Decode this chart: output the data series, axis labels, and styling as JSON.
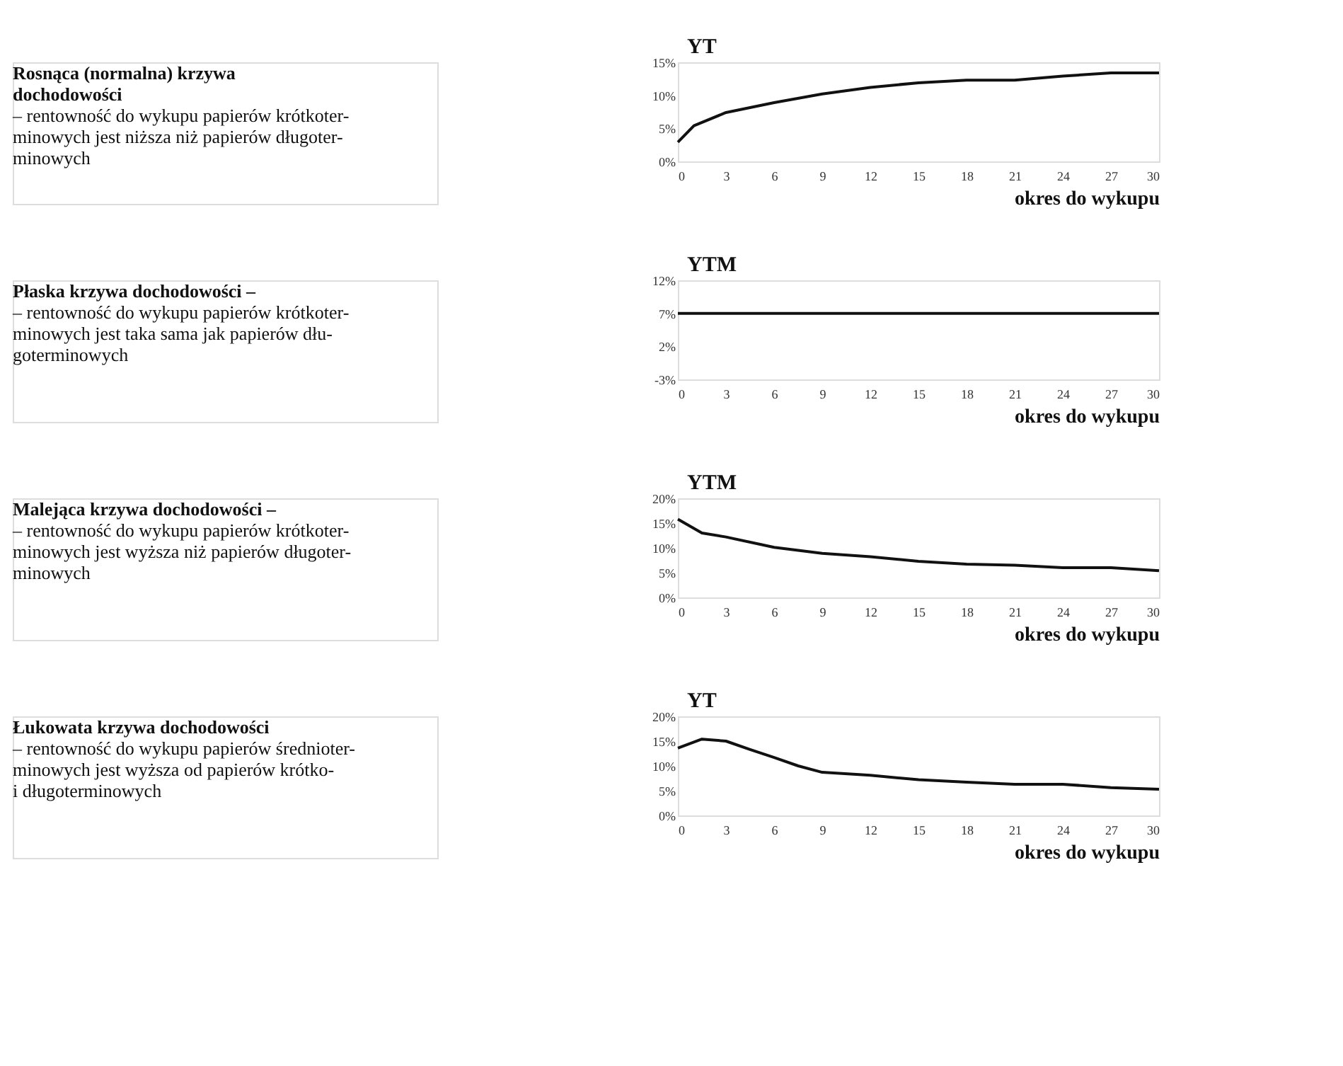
{
  "chart_data": [
    {
      "type": "other",
      "title": "Rosnąca (normalna) krzywa\ndochodowości",
      "subtitle": "– rentowność do wykupu papierów krótkoter-\nminowych jest niższa niż papierów długoter-\nminowych"
    },
    {
      "type": "line",
      "ylabel": "YT",
      "xlabel": "okres do wykupu",
      "x": [
        0,
        1,
        3,
        6,
        9,
        12,
        15,
        18,
        21,
        24,
        27,
        30
      ],
      "values": [
        2.9,
        5.4,
        7.4,
        8.9,
        10.2,
        11.2,
        11.9,
        12.3,
        12.3,
        12.9,
        13.4,
        13.4
      ],
      "color": "#111111",
      "xlim": [
        0,
        30
      ],
      "xticks": [
        0,
        3,
        6,
        9,
        12,
        15,
        18,
        21,
        24,
        27,
        30
      ],
      "ylim": [
        0,
        15
      ],
      "yticks": [
        {
          "value": 0,
          "label": "0%"
        },
        {
          "value": 5,
          "label": "5%"
        },
        {
          "value": 10,
          "label": "10%"
        },
        {
          "value": 15,
          "label": "15%"
        }
      ],
      "grid": false,
      "marker": "none",
      "line_style": "solid"
    },
    {
      "type": "other",
      "title": "Płaska krzywa dochodowości –",
      "subtitle": "– rentowność do wykupu papierów krótkoter-\nminowych jest taka sama jak papierów dłu-\ngoterminowych"
    },
    {
      "type": "line",
      "ylabel": "YTM",
      "xlabel": "okres do wykupu",
      "x": [
        0,
        30
      ],
      "values": [
        7,
        7
      ],
      "color": "#111111",
      "xlim": [
        0,
        30
      ],
      "xticks": [
        0,
        3,
        6,
        9,
        12,
        15,
        18,
        21,
        24,
        27,
        30
      ],
      "ylim": [
        -3,
        12
      ],
      "yticks": [
        {
          "value": -3,
          "label": "-3%"
        },
        {
          "value": 2,
          "label": "2%"
        },
        {
          "value": 7,
          "label": "7%"
        },
        {
          "value": 12,
          "label": "12%"
        }
      ],
      "grid": false,
      "marker": "none",
      "line_style": "solid"
    },
    {
      "type": "other",
      "title": "Malejąca krzywa dochodowości –",
      "subtitle": "– rentowność do wykupu papierów krótkoter-\nminowych jest wyższa niż papierów długoter-\nminowych"
    },
    {
      "type": "line",
      "ylabel": "YTM",
      "xlabel": "okres do wykupu",
      "x": [
        0,
        1.5,
        3,
        6,
        9,
        12,
        15,
        18,
        21,
        24,
        27,
        30
      ],
      "values": [
        15.8,
        13,
        12.2,
        10.1,
        8.9,
        8.2,
        7.3,
        6.7,
        6.5,
        6,
        6,
        5.4
      ],
      "color": "#111111",
      "xlim": [
        0,
        30
      ],
      "xticks": [
        0,
        3,
        6,
        9,
        12,
        15,
        18,
        21,
        24,
        27,
        30
      ],
      "ylim": [
        0,
        20
      ],
      "yticks": [
        {
          "value": 0,
          "label": "0%"
        },
        {
          "value": 5,
          "label": "5%"
        },
        {
          "value": 10,
          "label": "10%"
        },
        {
          "value": 15,
          "label": "15%"
        },
        {
          "value": 20,
          "label": "20%"
        }
      ],
      "grid": false,
      "marker": "none",
      "line_style": "solid"
    },
    {
      "type": "other",
      "title": "Łukowata krzywa dochodowości",
      "subtitle": "– rentowność do wykupu papierów średnioter-\nminowych jest wyższa od papierów krótko-\ni długoterminowych"
    },
    {
      "type": "line",
      "ylabel": "YT",
      "xlabel": "okres do wykupu",
      "x": [
        0,
        1.5,
        3,
        4.5,
        6,
        7.5,
        9,
        12,
        15,
        18,
        21,
        24,
        27,
        30
      ],
      "values": [
        13.6,
        15.4,
        15,
        13.3,
        11.7,
        10,
        8.7,
        8.1,
        7.2,
        6.7,
        6.3,
        6.3,
        5.6,
        5.3
      ],
      "color": "#111111",
      "xlim": [
        0,
        30
      ],
      "xticks": [
        0,
        3,
        6,
        9,
        12,
        15,
        18,
        21,
        24,
        27,
        30
      ],
      "ylim": [
        0,
        20
      ],
      "yticks": [
        {
          "value": 0,
          "label": "0%"
        },
        {
          "value": 5,
          "label": "5%"
        },
        {
          "value": 10,
          "label": "10%"
        },
        {
          "value": 15,
          "label": "15%"
        },
        {
          "value": 20,
          "label": "20%"
        }
      ],
      "grid": false,
      "marker": "none",
      "line_style": "solid"
    }
  ]
}
